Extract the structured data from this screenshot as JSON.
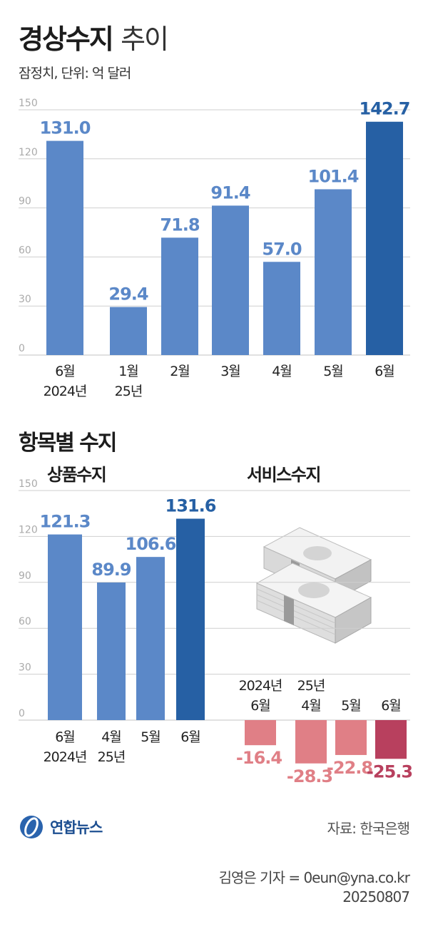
{
  "header": {
    "title_bold": "경상수지",
    "title_light": "추이",
    "subtitle": "잠정치, 단위: 억 달러"
  },
  "section2": {
    "title": "항목별 수지",
    "goods_label": "상품수지",
    "services_label": "서비스수지"
  },
  "footer": {
    "logo_text": "연합뉴스",
    "source": "자료: 한국은행",
    "credit_line1": "김영은 기자 = 0eun@yna.co.kr",
    "credit_line2": "20250807"
  },
  "colors": {
    "bar": "#5b88c8",
    "bar_highlight": "#2660a4",
    "label": "#5b88c8",
    "label_highlight": "#2660a4",
    "neg_bar": "#e07f86",
    "neg_bar_highlight": "#b8405e",
    "neg_label": "#e07f86",
    "neg_label_highlight": "#b8405e",
    "grid": "#cfcfcf",
    "tick": "#aaaaaa"
  },
  "chart_data": [
    {
      "id": "current_account",
      "type": "bar",
      "title": "경상수지 추이",
      "categories": [
        [
          "6월",
          "2024년"
        ],
        [
          "1월",
          "25년"
        ],
        [
          "2월"
        ],
        [
          "3월"
        ],
        [
          "4월"
        ],
        [
          "5월"
        ],
        [
          "6월"
        ]
      ],
      "values": [
        131.0,
        29.4,
        71.8,
        91.4,
        57.0,
        101.4,
        142.7
      ],
      "value_labels": [
        "131.0",
        "29.4",
        "71.8",
        "91.4",
        "57.0",
        "101.4",
        "142.7"
      ],
      "highlight_index": 6,
      "ylim": [
        0,
        150
      ],
      "yticks": [
        "0",
        "30",
        "60",
        "90",
        "120",
        "150"
      ],
      "unit": "억 달러"
    },
    {
      "id": "goods",
      "type": "bar",
      "title": "상품수지",
      "categories": [
        [
          "6월",
          "2024년"
        ],
        [
          "4월",
          "25년"
        ],
        [
          "5월"
        ],
        [
          "6월"
        ]
      ],
      "values": [
        121.3,
        89.9,
        106.6,
        131.6
      ],
      "value_labels": [
        "121.3",
        "89.9",
        "106.6",
        "131.6"
      ],
      "highlight_index": 3,
      "ylim": [
        0,
        150
      ],
      "yticks": [
        "0",
        "30",
        "60",
        "90",
        "120",
        "150"
      ]
    },
    {
      "id": "services",
      "type": "bar",
      "title": "서비스수지",
      "categories": [
        [
          "2024년",
          "6월"
        ],
        [
          "25년",
          "4월"
        ],
        [
          "5월"
        ],
        [
          "6월"
        ]
      ],
      "values": [
        -16.4,
        -28.3,
        -22.8,
        -25.3
      ],
      "value_labels": [
        "-16.4",
        "-28.3",
        "-22.8",
        "-25.3"
      ],
      "highlight_index": 3,
      "ylim": [
        -150,
        150
      ]
    }
  ]
}
